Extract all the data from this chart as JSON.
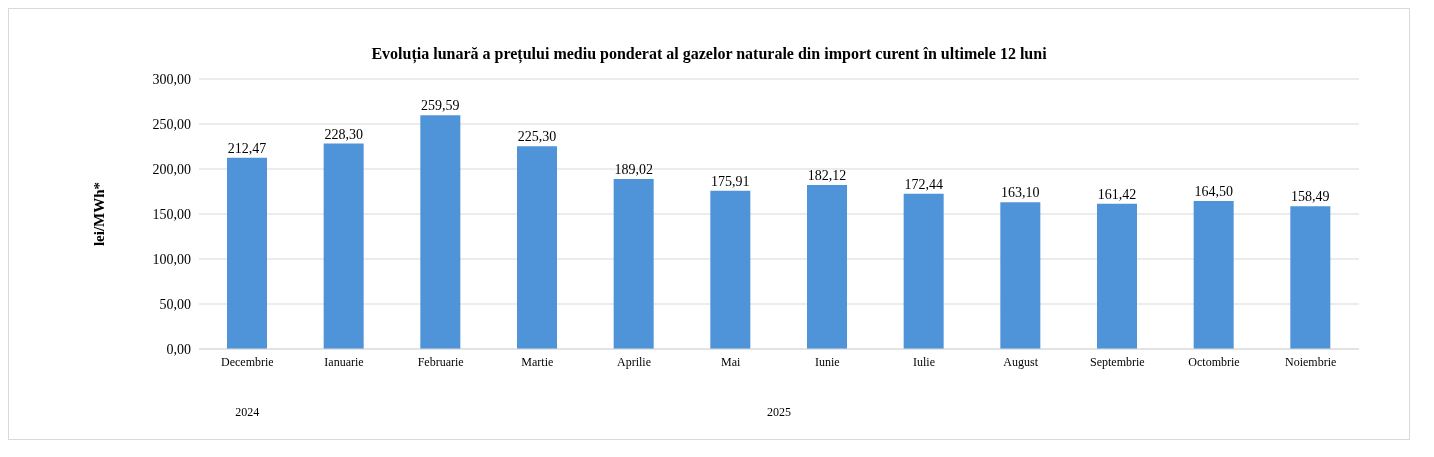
{
  "chart_data": {
    "type": "bar",
    "title": "Evoluția lunară a prețului mediu ponderat al gazelor naturale din import curent în ultimele 12 luni",
    "ylabel": "lei/MWh*",
    "categories": [
      "Decembrie",
      "Ianuarie",
      "Februarie",
      "Martie",
      "Aprilie",
      "Mai",
      "Iunie",
      "Iulie",
      "August",
      "Septembrie",
      "Octombrie",
      "Noiembrie"
    ],
    "values": [
      212.47,
      228.3,
      259.59,
      225.3,
      189.02,
      175.91,
      182.12,
      172.44,
      163.1,
      161.42,
      164.5,
      158.49
    ],
    "value_labels": [
      "212,47",
      "228,30",
      "259,59",
      "225,30",
      "189,02",
      "175,91",
      "182,12",
      "172,44",
      "163,10",
      "161,42",
      "164,50",
      "158,49"
    ],
    "color": "#4f94d9",
    "ylim": [
      0,
      300
    ],
    "yticks": [
      {
        "value": 0,
        "label": "0,00"
      },
      {
        "value": 50,
        "label": "50,00"
      },
      {
        "value": 100,
        "label": "100,00"
      },
      {
        "value": 150,
        "label": "150,00"
      },
      {
        "value": 200,
        "label": "200,00"
      },
      {
        "value": 250,
        "label": "250,00"
      },
      {
        "value": 300,
        "label": "300,00"
      }
    ],
    "grid": "y",
    "annotations": [
      "2024",
      "2025"
    ]
  }
}
